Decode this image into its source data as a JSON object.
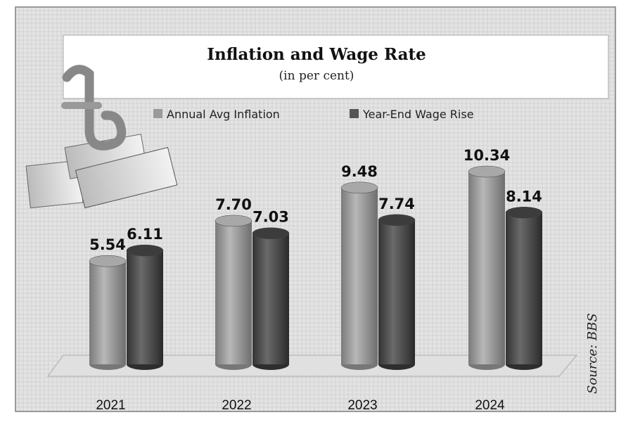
{
  "chart_data": {
    "type": "bar",
    "title": "Inflation and Wage Rate",
    "subtitle": "(in  per cent)",
    "categories": [
      "2021",
      "2022",
      "2023",
      "2024"
    ],
    "series": [
      {
        "name": "Annual Avg Inflation",
        "values": [
          5.54,
          7.7,
          9.48,
          10.34
        ],
        "labels": [
          "5.54",
          "7.70",
          "9.48",
          "10.34"
        ],
        "color": "#9a9a9a"
      },
      {
        "name": "Year-End Wage Rise",
        "values": [
          6.11,
          7.03,
          7.74,
          8.14
        ],
        "labels": [
          "6.11",
          "7.03",
          "7.74",
          "8.14"
        ],
        "color": "#555555"
      }
    ],
    "xlabel": "",
    "ylabel": "",
    "ylim": [
      0,
      11
    ],
    "legend": "top",
    "grid": false,
    "source": "Source: BBS"
  }
}
